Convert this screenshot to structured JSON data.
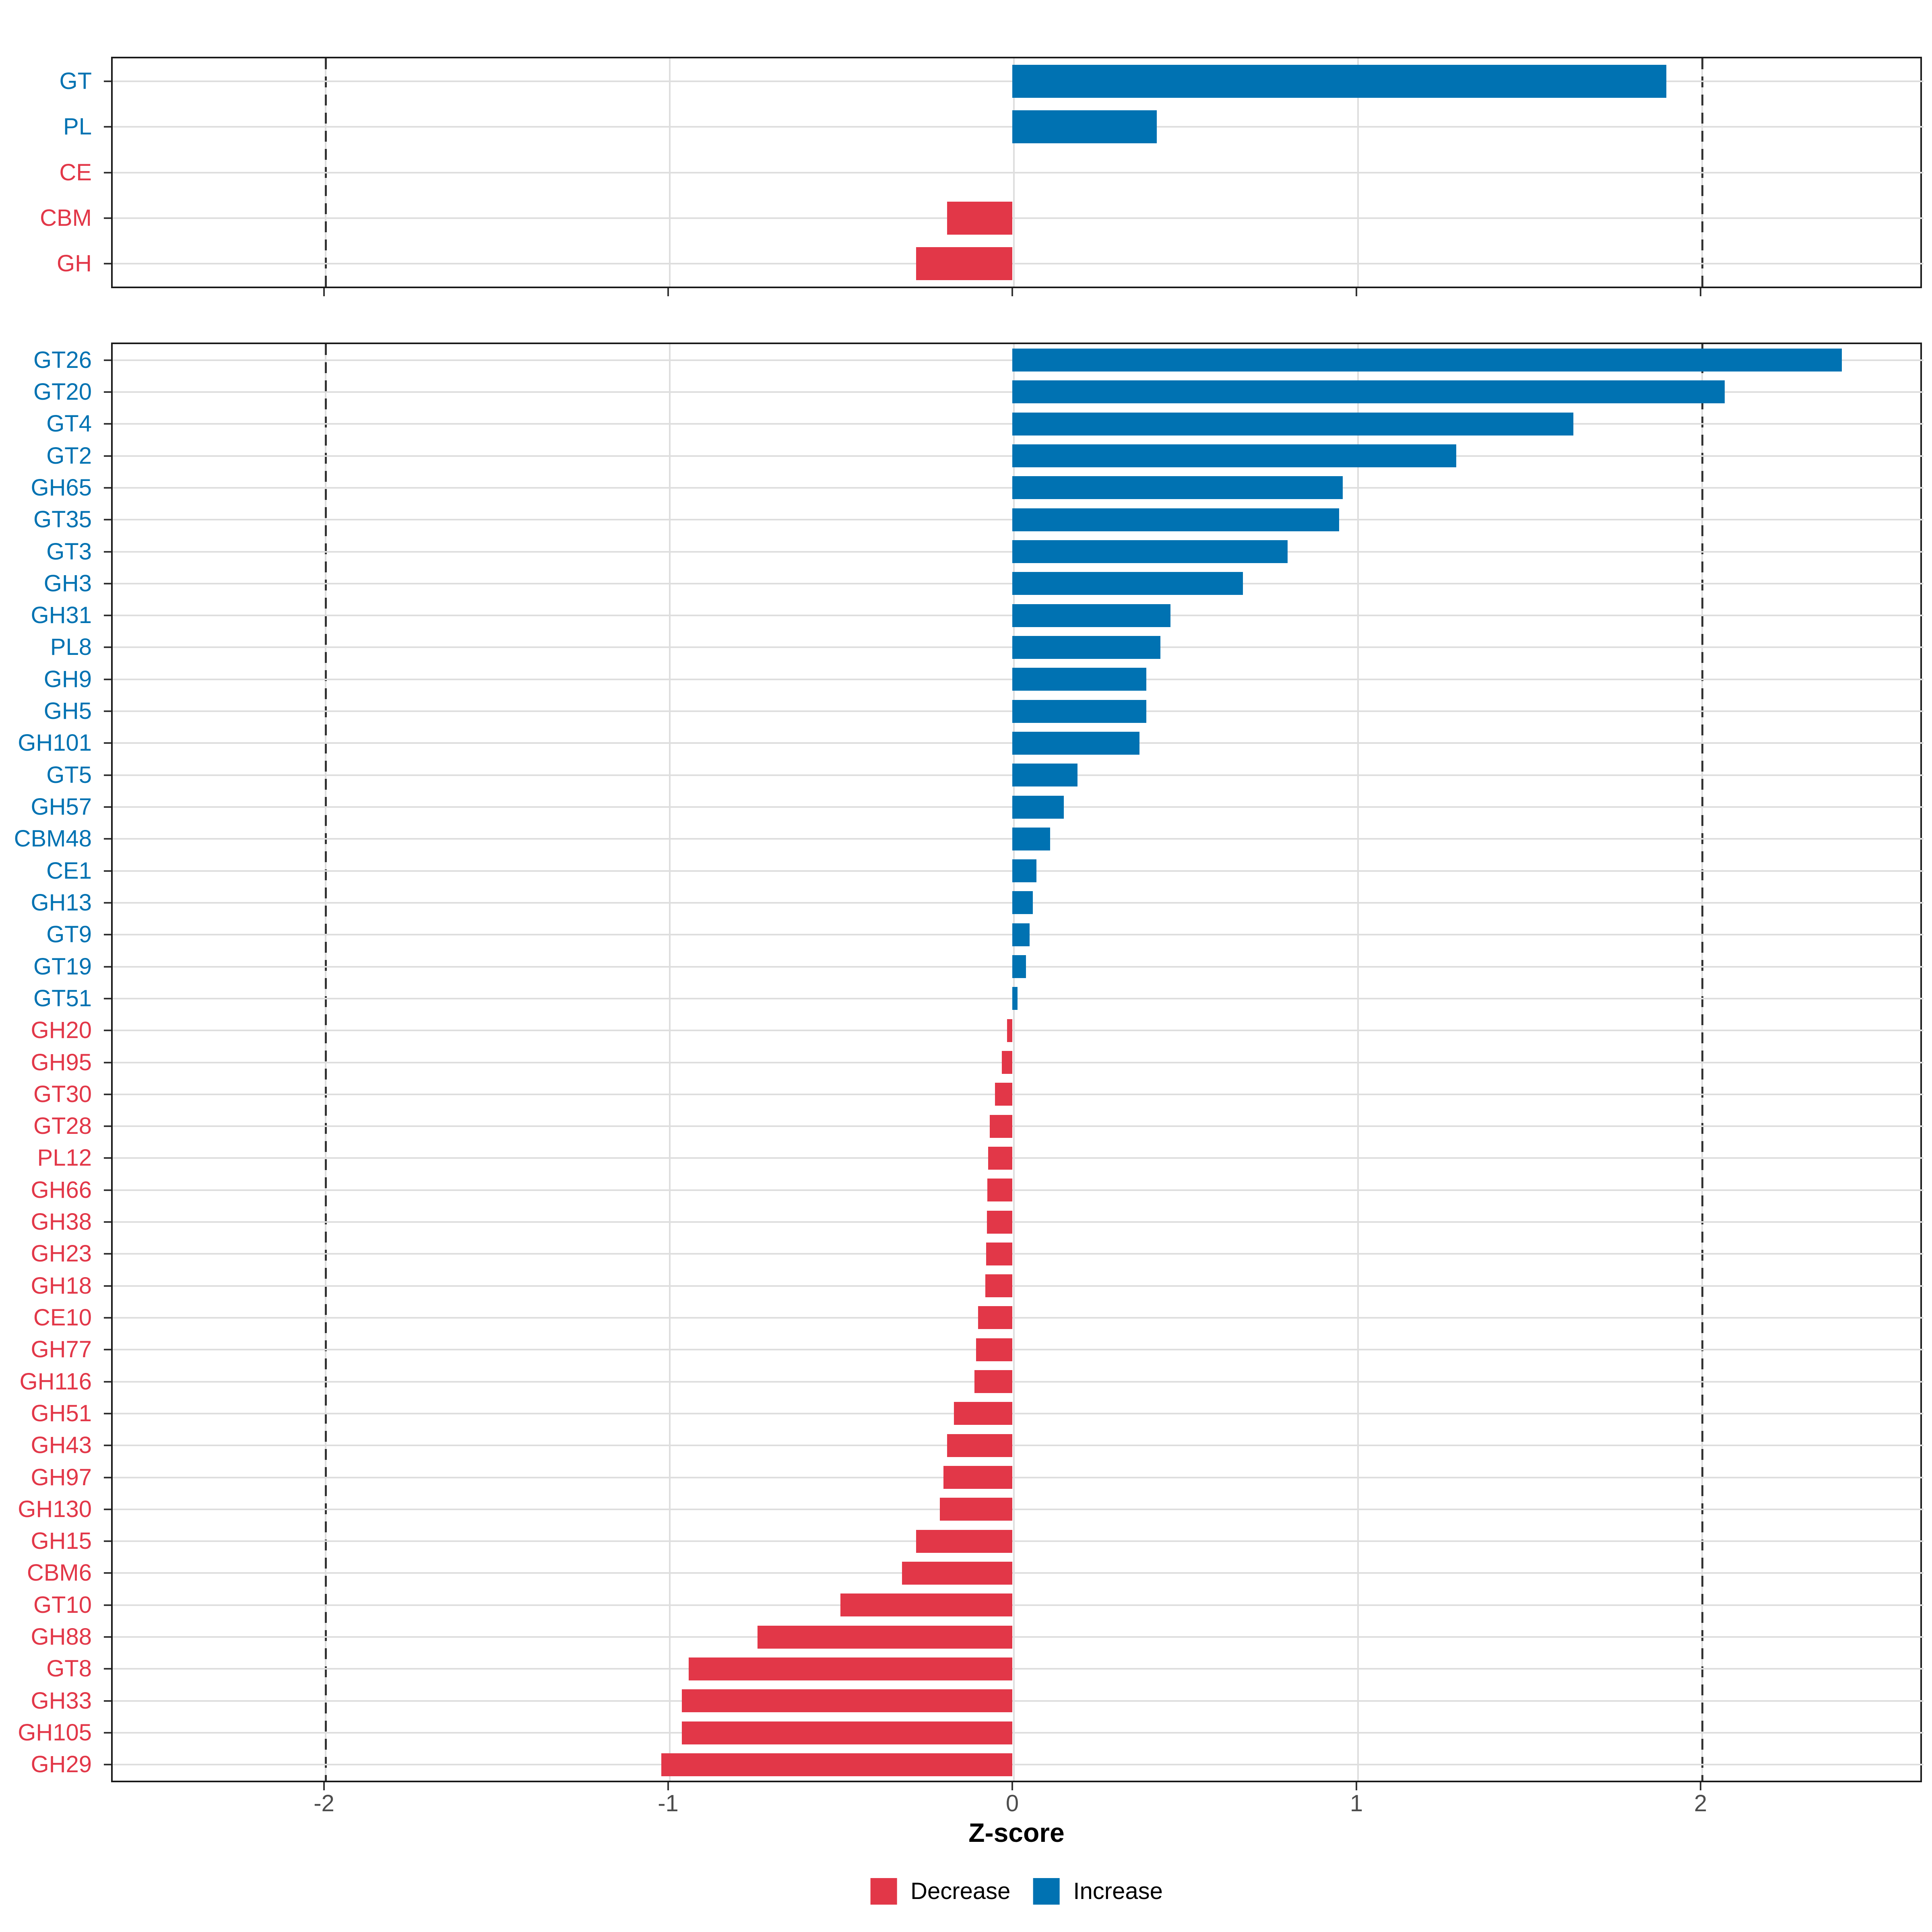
{
  "figure": {
    "xlabel": "Z-score",
    "colors": {
      "increase": "#0072B2",
      "decrease": "#E23748"
    },
    "axis": {
      "ticks": [
        -2,
        -1,
        0,
        1,
        2
      ],
      "tick_labels": [
        "-2",
        "-1",
        "0",
        "1",
        "2"
      ],
      "xlim": [
        -2.62,
        2.64
      ],
      "dashed_lines": [
        -2,
        2
      ],
      "grid": "on"
    },
    "legend": [
      {
        "label": "Decrease",
        "key": "decrease"
      },
      {
        "label": "Increase",
        "key": "increase"
      }
    ]
  },
  "chart_data": [
    {
      "type": "bar",
      "orientation": "horizontal",
      "panel": "top_classes",
      "title": "",
      "xlabel": "Z-score",
      "ylabel": "",
      "xlim": [
        -2.62,
        2.64
      ],
      "items": [
        {
          "label": "GT",
          "value": 1.9,
          "direction": "increase"
        },
        {
          "label": "PL",
          "value": 0.42,
          "direction": "increase"
        },
        {
          "label": "CE",
          "value": 0.0,
          "direction": "decrease"
        },
        {
          "label": "CBM",
          "value": -0.19,
          "direction": "decrease"
        },
        {
          "label": "GH",
          "value": -0.28,
          "direction": "decrease"
        }
      ]
    },
    {
      "type": "bar",
      "orientation": "horizontal",
      "panel": "bottom_families",
      "title": "",
      "xlabel": "Z-score",
      "ylabel": "",
      "xlim": [
        -2.62,
        2.64
      ],
      "items": [
        {
          "label": "GT26",
          "value": 2.41,
          "direction": "increase"
        },
        {
          "label": "GT20",
          "value": 2.07,
          "direction": "increase"
        },
        {
          "label": "GT4",
          "value": 1.63,
          "direction": "increase"
        },
        {
          "label": "GT2",
          "value": 1.29,
          "direction": "increase"
        },
        {
          "label": "GH65",
          "value": 0.96,
          "direction": "increase"
        },
        {
          "label": "GT35",
          "value": 0.95,
          "direction": "increase"
        },
        {
          "label": "GT3",
          "value": 0.8,
          "direction": "increase"
        },
        {
          "label": "GH3",
          "value": 0.67,
          "direction": "increase"
        },
        {
          "label": "GH31",
          "value": 0.46,
          "direction": "increase"
        },
        {
          "label": "PL8",
          "value": 0.43,
          "direction": "increase"
        },
        {
          "label": "GH9",
          "value": 0.39,
          "direction": "increase"
        },
        {
          "label": "GH5",
          "value": 0.39,
          "direction": "increase"
        },
        {
          "label": "GH101",
          "value": 0.37,
          "direction": "increase"
        },
        {
          "label": "GT5",
          "value": 0.19,
          "direction": "increase"
        },
        {
          "label": "GH57",
          "value": 0.15,
          "direction": "increase"
        },
        {
          "label": "CBM48",
          "value": 0.11,
          "direction": "increase"
        },
        {
          "label": "CE1",
          "value": 0.07,
          "direction": "increase"
        },
        {
          "label": "GH13",
          "value": 0.06,
          "direction": "increase"
        },
        {
          "label": "GT9",
          "value": 0.05,
          "direction": "increase"
        },
        {
          "label": "GT19",
          "value": 0.04,
          "direction": "increase"
        },
        {
          "label": "GT51",
          "value": 0.015,
          "direction": "increase"
        },
        {
          "label": "GH20",
          "value": -0.015,
          "direction": "decrease"
        },
        {
          "label": "GH95",
          "value": -0.03,
          "direction": "decrease"
        },
        {
          "label": "GT30",
          "value": -0.05,
          "direction": "decrease"
        },
        {
          "label": "GT28",
          "value": -0.065,
          "direction": "decrease"
        },
        {
          "label": "PL12",
          "value": -0.07,
          "direction": "decrease"
        },
        {
          "label": "GH66",
          "value": -0.072,
          "direction": "decrease"
        },
        {
          "label": "GH38",
          "value": -0.074,
          "direction": "decrease"
        },
        {
          "label": "GH23",
          "value": -0.076,
          "direction": "decrease"
        },
        {
          "label": "GH18",
          "value": -0.078,
          "direction": "decrease"
        },
        {
          "label": "CE10",
          "value": -0.1,
          "direction": "decrease"
        },
        {
          "label": "GH77",
          "value": -0.105,
          "direction": "decrease"
        },
        {
          "label": "GH116",
          "value": -0.11,
          "direction": "decrease"
        },
        {
          "label": "GH51",
          "value": -0.17,
          "direction": "decrease"
        },
        {
          "label": "GH43",
          "value": -0.19,
          "direction": "decrease"
        },
        {
          "label": "GH97",
          "value": -0.2,
          "direction": "decrease"
        },
        {
          "label": "GH130",
          "value": -0.21,
          "direction": "decrease"
        },
        {
          "label": "GH15",
          "value": -0.28,
          "direction": "decrease"
        },
        {
          "label": "CBM6",
          "value": -0.32,
          "direction": "decrease"
        },
        {
          "label": "GT10",
          "value": -0.5,
          "direction": "decrease"
        },
        {
          "label": "GH88",
          "value": -0.74,
          "direction": "decrease"
        },
        {
          "label": "GT8",
          "value": -0.94,
          "direction": "decrease"
        },
        {
          "label": "GH33",
          "value": -0.96,
          "direction": "decrease"
        },
        {
          "label": "GH105",
          "value": -0.96,
          "direction": "decrease"
        },
        {
          "label": "GH29",
          "value": -1.02,
          "direction": "decrease"
        }
      ]
    }
  ]
}
